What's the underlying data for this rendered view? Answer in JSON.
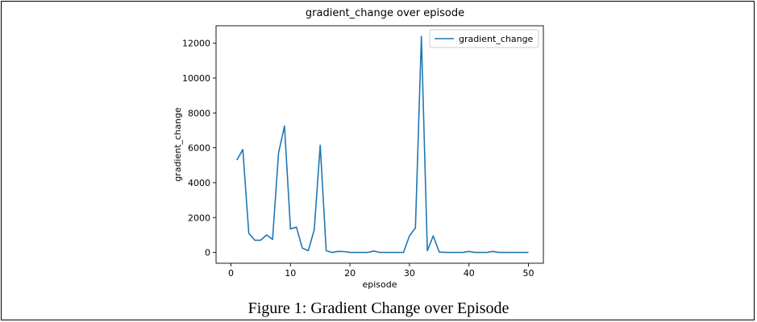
{
  "caption": "Figure 1: Gradient Change over Episode",
  "chart_data": {
    "type": "line",
    "title": "gradient_change over episode",
    "xlabel": "episode",
    "ylabel": "gradient_change",
    "xlim": [
      -2.5,
      52.5
    ],
    "ylim": [
      -620,
      13000
    ],
    "xticks": [
      0,
      10,
      20,
      30,
      40,
      50
    ],
    "yticks": [
      0,
      2000,
      4000,
      6000,
      8000,
      10000,
      12000
    ],
    "grid": false,
    "legend_position": "top-right",
    "series_color": "#1f77b4",
    "series": [
      {
        "name": "gradient_change",
        "x": [
          1,
          2,
          3,
          4,
          5,
          6,
          7,
          8,
          9,
          10,
          11,
          12,
          13,
          14,
          15,
          16,
          17,
          18,
          19,
          20,
          21,
          22,
          23,
          24,
          25,
          26,
          27,
          28,
          29,
          30,
          31,
          32,
          33,
          34,
          35,
          36,
          37,
          38,
          39,
          40,
          41,
          42,
          43,
          44,
          45,
          46,
          47,
          48,
          49,
          50
        ],
        "y": [
          5300,
          5900,
          1100,
          700,
          700,
          1000,
          750,
          5700,
          7250,
          1350,
          1450,
          250,
          100,
          1300,
          6150,
          100,
          0,
          60,
          50,
          0,
          0,
          0,
          0,
          80,
          0,
          0,
          0,
          0,
          0,
          950,
          1400,
          12400,
          100,
          950,
          20,
          0,
          0,
          0,
          0,
          60,
          0,
          0,
          0,
          60,
          0,
          0,
          0,
          0,
          0,
          0
        ]
      }
    ]
  }
}
